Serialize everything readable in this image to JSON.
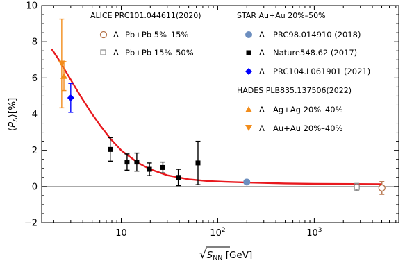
{
  "chart_data": {
    "type": "scatter",
    "title": "",
    "xlabel": "√S_NN [GeV]",
    "xlabel_parts": {
      "root": "√",
      "var": "S",
      "sub": "NN",
      "unit": " [GeV]"
    },
    "ylabel": "⟨P_Λ⟩[%]",
    "ylabel_parts": {
      "open": "⟨",
      "var": "P",
      "sub": "Λ",
      "close": "⟩[%]"
    },
    "xscale": "log",
    "xlim": [
      1.5,
      7500
    ],
    "ylim": [
      -2,
      10
    ],
    "xticks": [
      10,
      100,
      1000
    ],
    "xtick_labels": [
      {
        "base": "10",
        "exp": ""
      },
      {
        "base": "10",
        "exp": "2"
      },
      {
        "base": "10",
        "exp": "3"
      }
    ],
    "yticks": [
      -2,
      0,
      2,
      4,
      6,
      8,
      10
    ],
    "ytick_labels": [
      "−2",
      "0",
      "2",
      "4",
      "6",
      "8",
      "10"
    ],
    "grid": false,
    "reference_line_y": 0,
    "legend_groups": [
      {
        "header": "ALICE PRC101.044611(2020)",
        "position": "top-left"
      },
      {
        "header": "STAR  Au+Au 20%–50%",
        "position": "top-right"
      },
      {
        "header": "HADES PLB835.137506(2022)",
        "position": "right"
      }
    ],
    "series": [
      {
        "name": "Pb+Pb 5%–15%",
        "symbol": "Λ",
        "group": 0,
        "marker": "circle-open",
        "color": "#b5734a",
        "points": [
          {
            "x": 5020,
            "y": -0.08,
            "err": 0.35
          }
        ]
      },
      {
        "name": "Pb+Pb 15%–50%",
        "symbol": "Λ",
        "group": 0,
        "marker": "square-open",
        "color": "#8c8c8c",
        "points": [
          {
            "x": 2760,
            "y": -0.03,
            "err": 0.2
          }
        ]
      },
      {
        "name": "PRC98.014910 (2018)",
        "symbol": "Λ",
        "group": 1,
        "marker": "circle-filled",
        "color": "#6c8ebf",
        "points": [
          {
            "x": 200,
            "y": 0.25,
            "err": 0.05
          }
        ]
      },
      {
        "name": "Nature548.62 (2017)",
        "symbol": "Λ",
        "group": 1,
        "marker": "square-filled",
        "color": "#000000",
        "points": [
          {
            "x": 7.7,
            "y": 2.05,
            "err": 0.65
          },
          {
            "x": 11.5,
            "y": 1.35,
            "err": 0.45
          },
          {
            "x": 14.5,
            "y": 1.35,
            "err": 0.5
          },
          {
            "x": 19.6,
            "y": 0.95,
            "err": 0.35
          },
          {
            "x": 27,
            "y": 1.05,
            "err": 0.3
          },
          {
            "x": 39,
            "y": 0.5,
            "err": 0.45
          },
          {
            "x": 62.4,
            "y": 1.3,
            "err": 1.2
          }
        ]
      },
      {
        "name": "PRC104.L061901 (2021)",
        "symbol": "Λ",
        "group": 1,
        "marker": "diamond-filled",
        "color": "#0000ff",
        "points": [
          {
            "x": 3.0,
            "y": 4.9,
            "err": 0.8
          }
        ]
      },
      {
        "name": "Ag+Ag 20%–40%",
        "symbol": "Λ",
        "group": 2,
        "marker": "triangle-up",
        "color": "#f28c1a",
        "points": [
          {
            "x": 2.55,
            "y": 6.1,
            "err": 0.8
          }
        ]
      },
      {
        "name": "Au+Au 20%–40%",
        "symbol": "Λ",
        "group": 2,
        "marker": "triangle-down",
        "color": "#f28c1a",
        "points": [
          {
            "x": 2.42,
            "y": 6.8,
            "err": 2.45
          }
        ]
      }
    ],
    "fit_curve": {
      "color": "#e8191e",
      "points": [
        [
          1.9,
          7.6
        ],
        [
          2.2,
          7.1
        ],
        [
          2.5,
          6.6
        ],
        [
          3,
          5.9
        ],
        [
          3.5,
          5.3
        ],
        [
          4,
          4.8
        ],
        [
          5,
          4.0
        ],
        [
          6,
          3.4
        ],
        [
          7.7,
          2.65
        ],
        [
          10,
          2.0
        ],
        [
          15,
          1.3
        ],
        [
          20,
          0.95
        ],
        [
          30,
          0.62
        ],
        [
          50,
          0.4
        ],
        [
          80,
          0.3
        ],
        [
          120,
          0.26
        ],
        [
          200,
          0.22
        ],
        [
          500,
          0.17
        ],
        [
          1000,
          0.15
        ],
        [
          5000,
          0.13
        ]
      ]
    }
  }
}
